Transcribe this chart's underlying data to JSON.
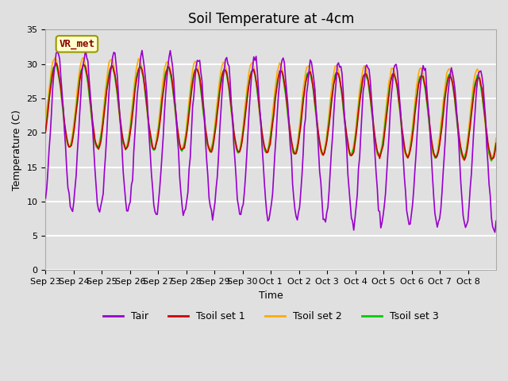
{
  "title": "Soil Temperature at -4cm",
  "xlabel": "Time",
  "ylabel": "Temperature (C)",
  "ylim": [
    0,
    35
  ],
  "plot_bg_color": "#e0e0e0",
  "grid_color": "white",
  "colors": {
    "Tair": "#9900cc",
    "Tsoil1": "#cc0000",
    "Tsoil2": "#ffaa00",
    "Tsoil3": "#00cc00"
  },
  "legend_labels": [
    "Tair",
    "Tsoil set 1",
    "Tsoil set 2",
    "Tsoil set 3"
  ],
  "annotation_text": "VR_met",
  "annotation_color": "#880000",
  "annotation_bg": "#ffffcc",
  "x_tick_labels": [
    "Sep 23",
    "Sep 24",
    "Sep 25",
    "Sep 26",
    "Sep 27",
    "Sep 28",
    "Sep 29",
    "Sep 30",
    "Oct 1",
    "Oct 2",
    "Oct 3",
    "Oct 4",
    "Oct 5",
    "Oct 6",
    "Oct 7",
    "Oct 8"
  ],
  "n_days": 16,
  "title_fontsize": 12,
  "axis_fontsize": 9,
  "tick_fontsize": 8
}
